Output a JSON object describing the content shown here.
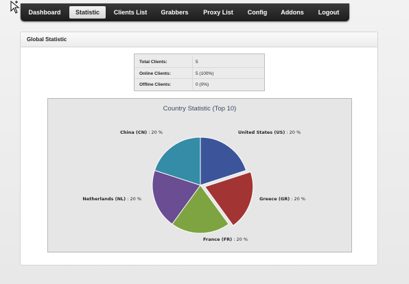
{
  "nav": {
    "items": [
      {
        "label": "Dashboard"
      },
      {
        "label": "Statistic"
      },
      {
        "label": "Clients List"
      },
      {
        "label": "Grabbers"
      },
      {
        "label": "Proxy List"
      },
      {
        "label": "Config"
      },
      {
        "label": "Addons"
      },
      {
        "label": "Logout"
      }
    ],
    "active": "Statistic"
  },
  "panel": {
    "title": "Global Statistic"
  },
  "stats": {
    "rows": [
      {
        "key": "Total Clients:",
        "value": "5"
      },
      {
        "key": "Online Clients:",
        "value": "5 (100%)"
      },
      {
        "key": "Offline Clients:",
        "value": "0 (0%)"
      }
    ]
  },
  "colors": {
    "nav_bg": "#2a2a2a",
    "chart_bg": "#e6e6e6"
  },
  "chart_data": {
    "type": "pie",
    "title": "Country Statistic (Top 10)",
    "slices": [
      {
        "name": "United States (US)",
        "value": 20,
        "label": " : 20 %",
        "color": "#3c549a",
        "exploded": false
      },
      {
        "name": "Greece (GR)",
        "value": 20,
        "label": " : 20 %",
        "color": "#a23434",
        "exploded": true
      },
      {
        "name": "France (FR)",
        "value": 20,
        "label": " : 20 %",
        "color": "#7ea441",
        "exploded": false
      },
      {
        "name": "Netherlands (NL)",
        "value": 20,
        "label": " : 20 %",
        "color": "#6a4d92",
        "exploded": false
      },
      {
        "name": "China (CN)",
        "value": 20,
        "label": " : 20 %",
        "color": "#348ca6",
        "exploded": false
      }
    ]
  }
}
